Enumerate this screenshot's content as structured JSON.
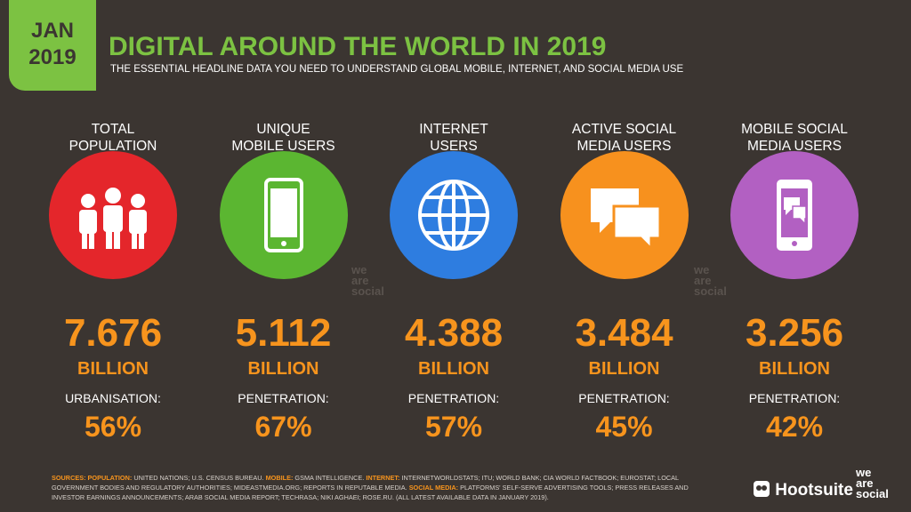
{
  "header": {
    "date_month": "JAN",
    "date_year": "2019",
    "title": "DIGITAL AROUND THE WORLD IN 2019",
    "subtitle": "THE ESSENTIAL HEADLINE DATA YOU NEED TO UNDERSTAND GLOBAL MOBILE, INTERNET, AND SOCIAL MEDIA USE"
  },
  "columns": [
    {
      "label_line1": "TOTAL",
      "label_line2": "POPULATION",
      "value": "7.676",
      "unit": "BILLION",
      "sub_label": "URBANISATION:",
      "sub_value": "56%",
      "color": "#e4262b",
      "icon": "people"
    },
    {
      "label_line1": "UNIQUE",
      "label_line2": "MOBILE USERS",
      "value": "5.112",
      "unit": "BILLION",
      "sub_label": "PENETRATION:",
      "sub_value": "67%",
      "color": "#5bb631",
      "icon": "phone"
    },
    {
      "label_line1": "INTERNET",
      "label_line2": "USERS",
      "value": "4.388",
      "unit": "BILLION",
      "sub_label": "PENETRATION:",
      "sub_value": "57%",
      "color": "#2e7de0",
      "icon": "globe"
    },
    {
      "label_line1": "ACTIVE SOCIAL",
      "label_line2": "MEDIA USERS",
      "value": "3.484",
      "unit": "BILLION",
      "sub_label": "PENETRATION:",
      "sub_value": "45%",
      "color": "#f7911e",
      "icon": "chat"
    },
    {
      "label_line1": "MOBILE SOCIAL",
      "label_line2": "MEDIA USERS",
      "value": "3.256",
      "unit": "BILLION",
      "sub_label": "PENETRATION:",
      "sub_value": "42%",
      "color": "#b260c2",
      "icon": "mobilechat"
    }
  ],
  "watermark": "we are social",
  "sources": {
    "heading": "SOURCES:",
    "items": [
      {
        "label": "POPULATION:",
        "text": "UNITED NATIONS; U.S. CENSUS BUREAU."
      },
      {
        "label": "MOBILE:",
        "text": "GSMA INTELLIGENCE."
      },
      {
        "label": "INTERNET:",
        "text": "INTERNETWORLDSTATS; ITU; WORLD BANK; CIA WORLD FACTBOOK; EUROSTAT; LOCAL GOVERNMENT BODIES AND REGULATORY AUTHORITIES; MIDEASTMEDIA.ORG; REPORTS IN REPUTABLE MEDIA."
      },
      {
        "label": "SOCIAL MEDIA:",
        "text": "PLATFORMS' SELF-SERVE ADVERTISING TOOLS; PRESS RELEASES AND INVESTOR EARNINGS ANNOUNCEMENTS; ARAB SOCIAL MEDIA REPORT; TECHRASA; NIKI AGHAEI; ROSE.RU. (ALL LATEST AVAILABLE DATA IN JANUARY 2019)."
      }
    ]
  },
  "logos": {
    "hootsuite": "Hootsuite",
    "wearesocial_1": "we",
    "wearesocial_2": "are",
    "wearesocial_3": "social"
  }
}
